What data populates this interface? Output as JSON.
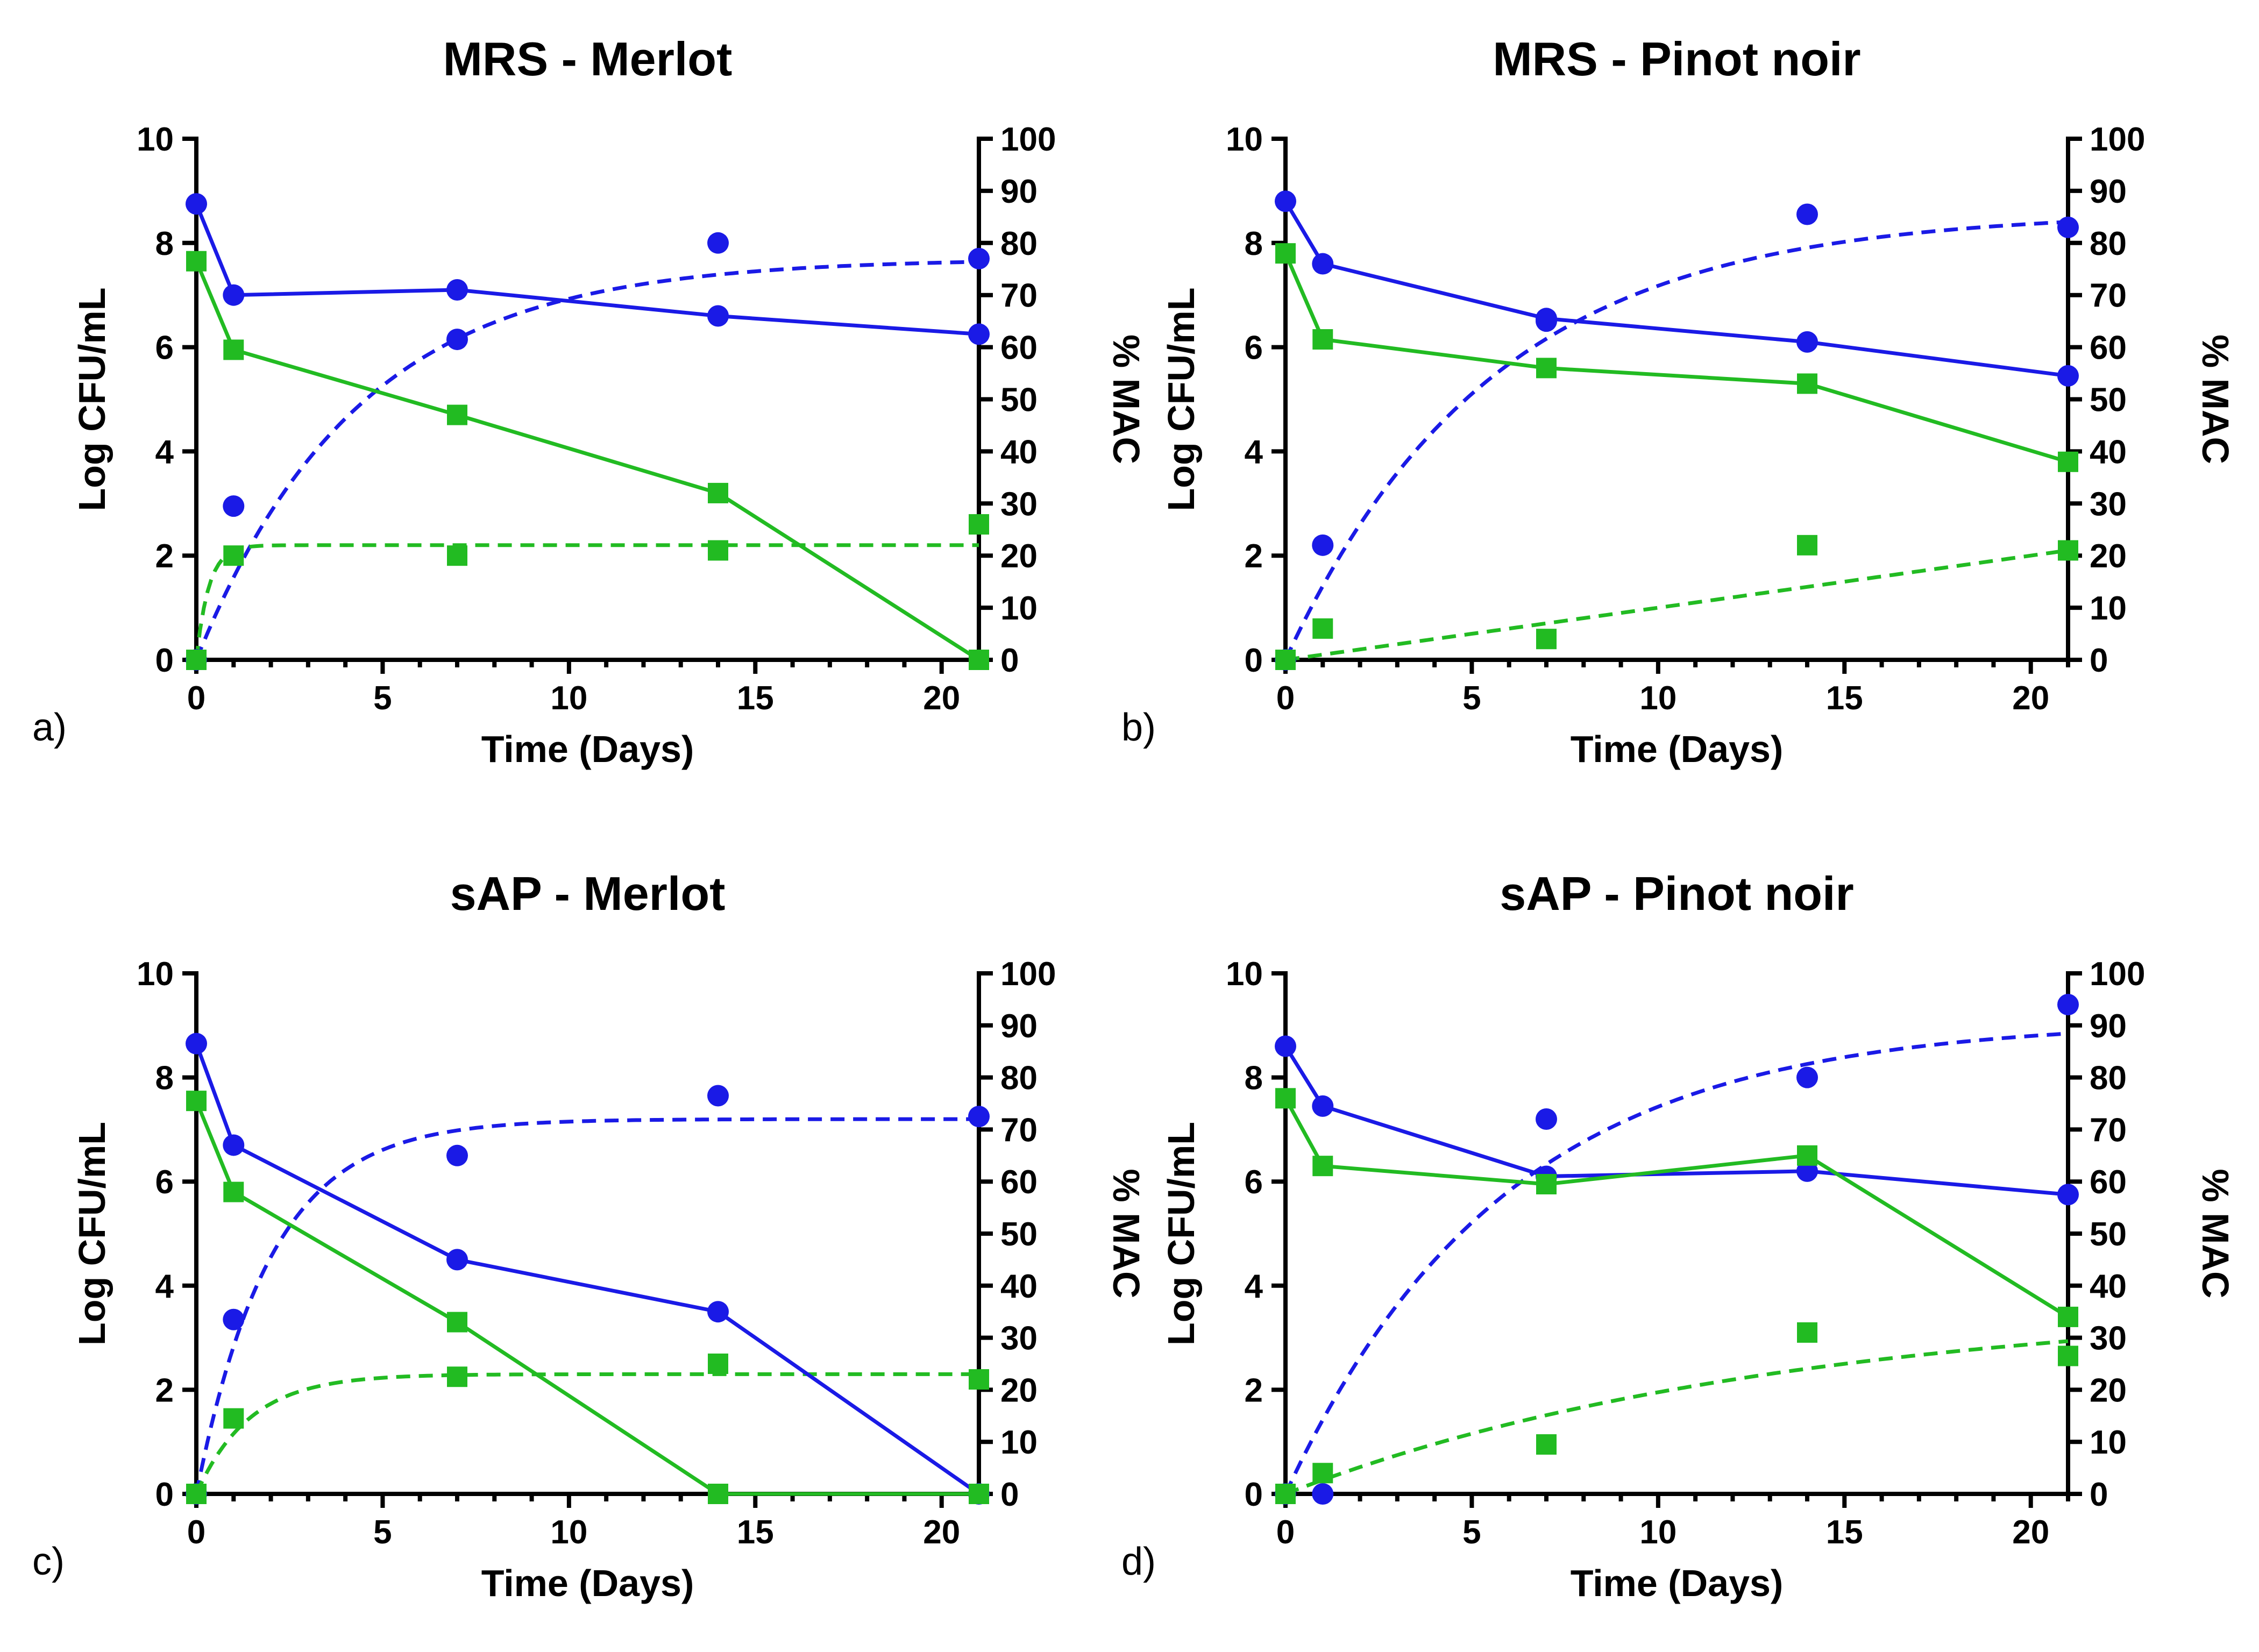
{
  "colors": {
    "blue": "#1A1AE6",
    "green": "#22BB22",
    "axis": "#000000"
  },
  "chart_data": [
    {
      "type": "line",
      "panel_label": "a)",
      "title": "MRS -  Merlot",
      "xlabel": "Time (Days)",
      "ylabel": "Log CFU/mL",
      "y2label": "% MAC",
      "xlim": [
        0,
        21
      ],
      "ylim": [
        0,
        10
      ],
      "y2lim": [
        0,
        100
      ],
      "xticks": [
        "0",
        "5",
        "10",
        "15",
        "20"
      ],
      "yticks": [
        "0",
        "2",
        "4",
        "6",
        "8",
        "10"
      ],
      "y2ticks": [
        "0",
        "10",
        "20",
        "30",
        "40",
        "50",
        "60",
        "70",
        "80",
        "90",
        "100"
      ],
      "series": [
        {
          "name": "Log CFU/mL (blue)",
          "axis": "left",
          "color": "#1A1AE6",
          "marker": "circle",
          "line": "solid",
          "x": [
            0,
            1,
            7,
            14,
            21
          ],
          "y": [
            8.75,
            7.0,
            7.1,
            6.6,
            6.25
          ]
        },
        {
          "name": "Log CFU/mL (green)",
          "axis": "left",
          "color": "#22BB22",
          "marker": "square",
          "line": "solid",
          "x": [
            0,
            1,
            7,
            14,
            21
          ],
          "y": [
            7.65,
            5.95,
            4.7,
            3.2,
            0.0
          ]
        },
        {
          "name": "% MAC (blue)",
          "axis": "right",
          "color": "#1A1AE6",
          "marker": "circle",
          "line": "none",
          "x": [
            0,
            1,
            7,
            14,
            21
          ],
          "y": [
            0,
            29.5,
            61.5,
            80,
            77
          ]
        },
        {
          "name": "% MAC (green)",
          "axis": "right",
          "color": "#22BB22",
          "marker": "square",
          "line": "none",
          "x": [
            0,
            1,
            7,
            14,
            21
          ],
          "y": [
            0,
            20,
            20,
            21,
            26
          ]
        }
      ],
      "fits": [
        {
          "axis": "right",
          "color": "#1A1AE6",
          "model": "one-phase",
          "plateau": 77,
          "k": 0.23
        },
        {
          "axis": "right",
          "color": "#22BB22",
          "model": "one-phase",
          "plateau": 22,
          "k": 3.0
        }
      ]
    },
    {
      "type": "line",
      "panel_label": "b)",
      "title": "MRS - Pinot noir",
      "xlabel": "Time (Days)",
      "ylabel": "Log CFU/mL",
      "y2label": "% MAC",
      "xlim": [
        0,
        21
      ],
      "ylim": [
        0,
        10
      ],
      "y2lim": [
        0,
        100
      ],
      "xticks": [
        "0",
        "5",
        "10",
        "15",
        "20"
      ],
      "yticks": [
        "0",
        "2",
        "4",
        "6",
        "8",
        "10"
      ],
      "y2ticks": [
        "0",
        "10",
        "20",
        "30",
        "40",
        "50",
        "60",
        "70",
        "80",
        "90",
        "100"
      ],
      "series": [
        {
          "name": "Log CFU/mL (blue)",
          "axis": "left",
          "color": "#1A1AE6",
          "marker": "circle",
          "line": "solid",
          "x": [
            0,
            1,
            7,
            14,
            21
          ],
          "y": [
            8.8,
            7.6,
            6.55,
            6.1,
            5.45
          ]
        },
        {
          "name": "Log CFU/mL (green)",
          "axis": "left",
          "color": "#22BB22",
          "marker": "square",
          "line": "solid",
          "x": [
            0,
            1,
            7,
            14,
            21
          ],
          "y": [
            7.8,
            6.15,
            5.6,
            5.3,
            3.8
          ]
        },
        {
          "name": "% MAC (blue)",
          "axis": "right",
          "color": "#1A1AE6",
          "marker": "circle",
          "line": "none",
          "x": [
            0,
            1,
            7,
            14,
            21
          ],
          "y": [
            0,
            22,
            65,
            85.5,
            83
          ]
        },
        {
          "name": "% MAC (green)",
          "axis": "right",
          "color": "#22BB22",
          "marker": "square",
          "line": "none",
          "x": [
            0,
            1,
            7,
            14,
            21
          ],
          "y": [
            0,
            6,
            4,
            22,
            21
          ]
        }
      ],
      "fits": [
        {
          "axis": "right",
          "color": "#1A1AE6",
          "model": "one-phase",
          "plateau": 86,
          "k": 0.18
        },
        {
          "axis": "right",
          "color": "#22BB22",
          "model": "linear",
          "slope": 1.0,
          "intercept": 0.0
        }
      ]
    },
    {
      "type": "line",
      "panel_label": "c)",
      "title": "sAP - Merlot",
      "xlabel": "Time (Days)",
      "ylabel": "Log CFU/mL",
      "y2label": "% MAC",
      "xlim": [
        0,
        21
      ],
      "ylim": [
        0,
        10
      ],
      "y2lim": [
        0,
        100
      ],
      "xticks": [
        "0",
        "5",
        "10",
        "15",
        "20"
      ],
      "yticks": [
        "0",
        "2",
        "4",
        "6",
        "8",
        "10"
      ],
      "y2ticks": [
        "0",
        "10",
        "20",
        "30",
        "40",
        "50",
        "60",
        "70",
        "80",
        "90",
        "100"
      ],
      "series": [
        {
          "name": "Log CFU/mL (blue)",
          "axis": "left",
          "color": "#1A1AE6",
          "marker": "circle",
          "line": "solid",
          "x": [
            0,
            1,
            7,
            14,
            21
          ],
          "y": [
            8.65,
            6.7,
            4.5,
            3.5,
            0.0
          ]
        },
        {
          "name": "Log CFU/mL (green)",
          "axis": "left",
          "color": "#22BB22",
          "marker": "square",
          "line": "solid",
          "x": [
            0,
            1,
            7,
            14,
            21
          ],
          "y": [
            7.55,
            5.8,
            3.3,
            0.0,
            0.0
          ]
        },
        {
          "name": "% MAC (blue)",
          "axis": "right",
          "color": "#1A1AE6",
          "marker": "circle",
          "line": "none",
          "x": [
            0,
            1,
            7,
            14,
            21
          ],
          "y": [
            0,
            33.5,
            65,
            76.5,
            72.5
          ]
        },
        {
          "name": "% MAC (green)",
          "axis": "right",
          "color": "#22BB22",
          "marker": "square",
          "line": "none",
          "x": [
            0,
            1,
            7,
            14,
            21
          ],
          "y": [
            0,
            14.5,
            22.5,
            25,
            22
          ]
        }
      ],
      "fits": [
        {
          "axis": "right",
          "color": "#1A1AE6",
          "model": "one-phase",
          "plateau": 72,
          "k": 0.5
        },
        {
          "axis": "right",
          "color": "#22BB22",
          "model": "one-phase",
          "plateau": 23,
          "k": 0.7
        }
      ]
    },
    {
      "type": "line",
      "panel_label": "d)",
      "title": "sAP - Pinot noir",
      "xlabel": "Time (Days)",
      "ylabel": "Log CFU/mL",
      "y2label": "% MAC",
      "xlim": [
        0,
        21
      ],
      "ylim": [
        0,
        10
      ],
      "y2lim": [
        0,
        100
      ],
      "xticks": [
        "0",
        "5",
        "10",
        "15",
        "20"
      ],
      "yticks": [
        "0",
        "2",
        "4",
        "6",
        "8",
        "10"
      ],
      "y2ticks": [
        "0",
        "10",
        "20",
        "30",
        "40",
        "50",
        "60",
        "70",
        "80",
        "90",
        "100"
      ],
      "series": [
        {
          "name": "Log CFU/mL (blue)",
          "axis": "left",
          "color": "#1A1AE6",
          "marker": "circle",
          "line": "solid",
          "x": [
            0,
            1,
            7,
            14,
            21
          ],
          "y": [
            8.6,
            7.45,
            6.1,
            6.2,
            5.75
          ]
        },
        {
          "name": "Log CFU/mL (green)",
          "axis": "left",
          "color": "#22BB22",
          "marker": "square",
          "line": "solid",
          "x": [
            0,
            1,
            7,
            14,
            21
          ],
          "y": [
            7.6,
            6.3,
            5.95,
            6.5,
            3.4
          ]
        },
        {
          "name": "% MAC (blue)",
          "axis": "right",
          "color": "#1A1AE6",
          "marker": "circle",
          "line": "none",
          "x": [
            0,
            1,
            7,
            14,
            21
          ],
          "y": [
            0,
            0,
            72,
            80,
            94
          ]
        },
        {
          "name": "% MAC (green)",
          "axis": "right",
          "color": "#22BB22",
          "marker": "square",
          "line": "none",
          "x": [
            0,
            1,
            7,
            14,
            21
          ],
          "y": [
            0,
            4,
            9.5,
            31,
            26.5
          ]
        }
      ],
      "fits": [
        {
          "axis": "right",
          "color": "#1A1AE6",
          "model": "one-phase",
          "plateau": 91,
          "k": 0.17
        },
        {
          "axis": "right",
          "color": "#22BB22",
          "model": "one-phase",
          "plateau": 37,
          "k": 0.075
        }
      ]
    }
  ]
}
